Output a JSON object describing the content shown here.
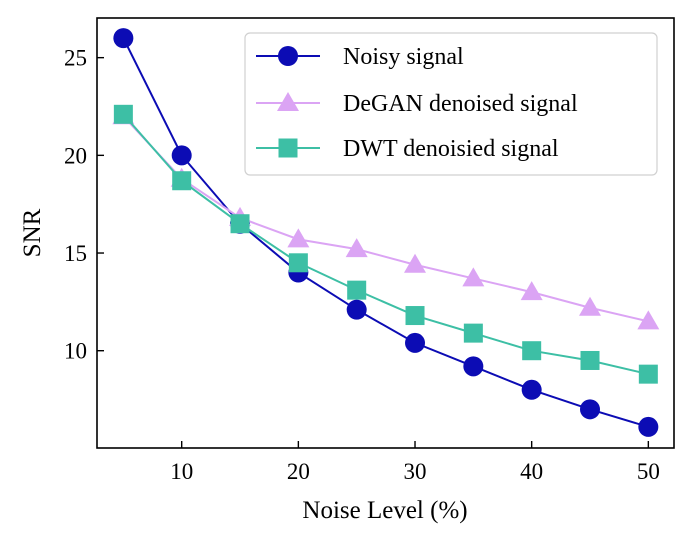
{
  "chart_data": {
    "type": "line",
    "title": "",
    "xlabel": "Noise Level (%)",
    "ylabel": "SNR",
    "xlim": [
      2.74,
      52.2
    ],
    "ylim": [
      5.02,
      27.03
    ],
    "xticks": [
      10,
      20,
      30,
      40,
      50
    ],
    "yticks": [
      10,
      15,
      20,
      25
    ],
    "grid": false,
    "legend_position": "top-right",
    "x": [
      5,
      10,
      15,
      20,
      25,
      30,
      35,
      40,
      45,
      50
    ],
    "series": [
      {
        "name": "Noisy signal",
        "marker": "circle",
        "color": "#0c0cb4",
        "values": [
          26.0,
          20.0,
          16.5,
          14.0,
          12.1,
          10.4,
          9.2,
          8.0,
          7.0,
          6.1
        ]
      },
      {
        "name": "DeGAN denoised signal",
        "marker": "triangle",
        "color": "#dba4f4",
        "values": [
          22.0,
          18.8,
          16.8,
          15.7,
          15.2,
          14.4,
          13.7,
          13.0,
          12.2,
          11.5
        ]
      },
      {
        "name": "DWT denoisied signal",
        "marker": "square",
        "color": "#3dbfa5",
        "values": [
          22.1,
          18.7,
          16.5,
          14.5,
          13.1,
          11.8,
          10.9,
          10.0,
          9.5,
          8.8
        ]
      }
    ]
  }
}
